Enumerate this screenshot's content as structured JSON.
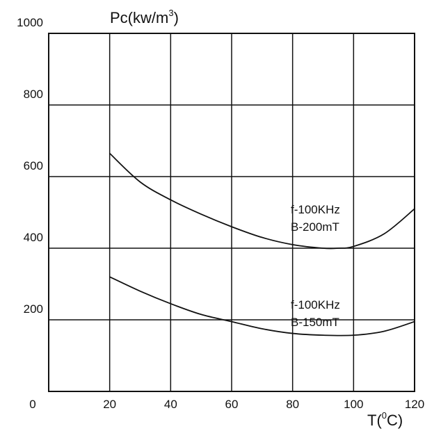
{
  "chart_data": {
    "type": "line",
    "ylabel": {
      "main": "Pc(kw/m",
      "sup": "3",
      "end": ")"
    },
    "xlabel": {
      "main": "T(",
      "sup": "0",
      "end": "C)"
    },
    "xlim": [
      0,
      120
    ],
    "ylim": [
      0,
      1000
    ],
    "x_ticks": [
      0,
      20,
      40,
      60,
      80,
      100,
      120
    ],
    "y_ticks": [
      200,
      400,
      600,
      800,
      1000
    ],
    "y_tick_labels": [
      "200",
      "400",
      "600",
      "800",
      "1000"
    ],
    "x_tick_labels": [
      "0",
      "20",
      "40",
      "60",
      "80",
      "100",
      "120"
    ],
    "grid": true,
    "series": [
      {
        "x": [
          20,
          30,
          40,
          50,
          60,
          70,
          80,
          90,
          95,
          100,
          110,
          120
        ],
        "y": [
          665,
          585,
          535,
          495,
          460,
          430,
          410,
          400,
          400,
          405,
          440,
          510
        ],
        "annotation": [
          "f-100KHz",
          "B-200mT"
        ]
      },
      {
        "x": [
          20,
          30,
          40,
          50,
          60,
          70,
          80,
          90,
          100,
          110,
          120
        ],
        "y": [
          320,
          280,
          245,
          215,
          195,
          175,
          162,
          157,
          157,
          168,
          195
        ],
        "annotation": [
          "f-100KHz",
          "B-150mT"
        ]
      }
    ]
  }
}
